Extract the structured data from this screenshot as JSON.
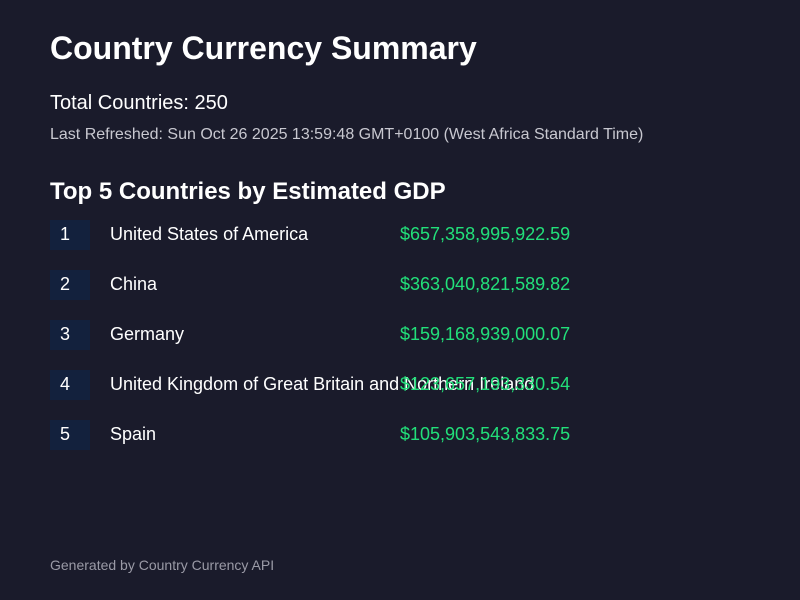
{
  "header": {
    "title": "Country Currency Summary",
    "total_countries": "Total Countries: 250",
    "last_refreshed": "Last Refreshed: Sun Oct 26 2025 13:59:48 GMT+0100 (West Africa Standard Time)"
  },
  "top_countries": {
    "title": "Top 5 Countries by Estimated GDP",
    "rows": [
      {
        "rank": "1",
        "name": "United States of America",
        "gdp": "$657,358,995,922.59"
      },
      {
        "rank": "2",
        "name": "China",
        "gdp": "$363,040,821,589.82"
      },
      {
        "rank": "3",
        "name": "Germany",
        "gdp": "$159,168,939,000.07"
      },
      {
        "rank": "4",
        "name": "United Kingdom of Great Britain and Northern Ireland",
        "gdp": "$123,657,193,330.54"
      },
      {
        "rank": "5",
        "name": "Spain",
        "gdp": "$105,903,543,833.75"
      }
    ]
  },
  "footer": {
    "text": "Generated by Country Currency API"
  },
  "colors": {
    "background": "#1a1b2b",
    "rank_badge": "#13213d",
    "gdp_value": "#22e07a",
    "muted_text": "#c8c8d0"
  }
}
